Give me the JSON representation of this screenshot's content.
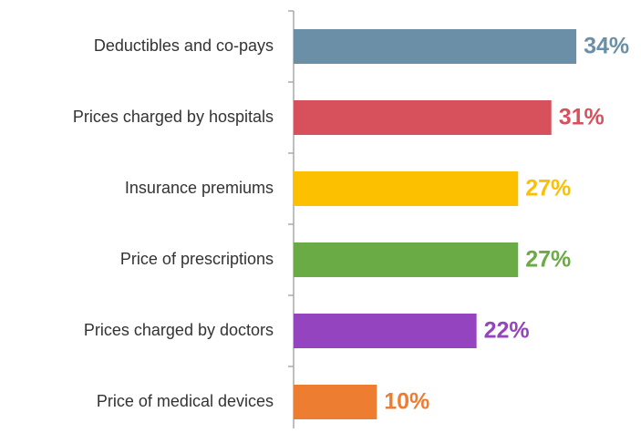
{
  "chart_data": {
    "type": "barh",
    "categories": [
      "Deductibles and co-pays",
      "Prices charged by hospitals",
      "Insurance premiums",
      "Price of prescriptions",
      "Prices charged by doctors",
      "Price of medical devices"
    ],
    "values": [
      34,
      31,
      27,
      27,
      22,
      10
    ],
    "value_labels": [
      "34%",
      "31%",
      "27%",
      "27%",
      "22%",
      "10%"
    ],
    "colors": [
      "#6a8fa6",
      "#d6515c",
      "#fcc000",
      "#6aab45",
      "#9444be",
      "#ed7d31"
    ]
  }
}
